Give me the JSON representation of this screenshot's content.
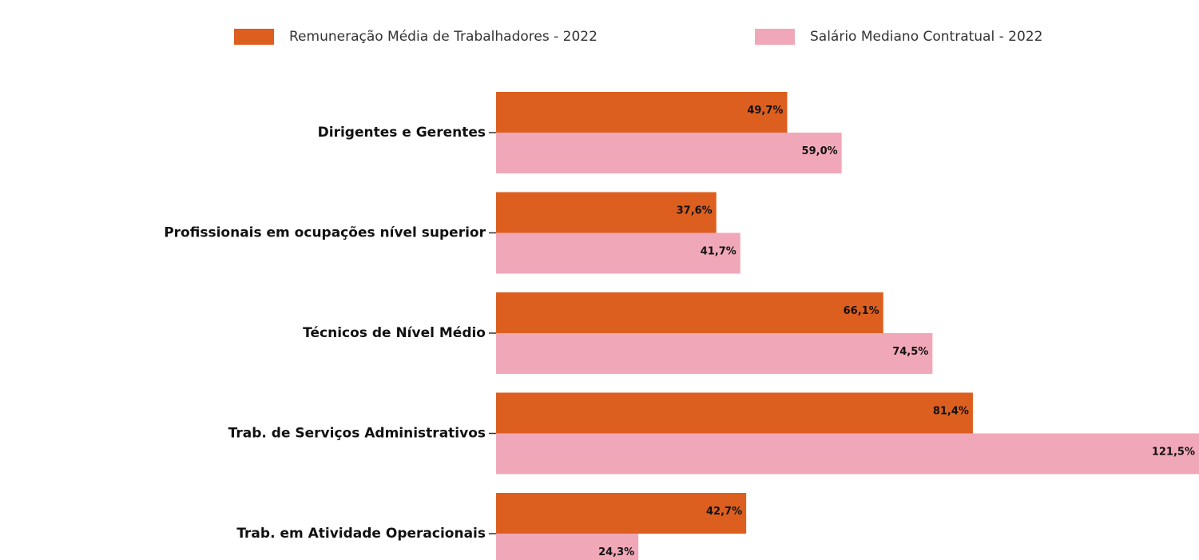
{
  "chart_data": {
    "type": "barh",
    "categories": [
      "Dirigentes e Gerentes",
      "Profissionais em ocupações nível superior",
      "Técnicos de Nível Médio",
      "Trab. de Serviços Administrativos",
      "Trab. em Atividade Operacionais"
    ],
    "series": [
      {
        "name": "Remuneração Média de Trabalhadores - 2022",
        "color": "#dc5f1f",
        "values": [
          49.7,
          37.6,
          66.1,
          81.4,
          42.7
        ],
        "value_labels": [
          "49,7%",
          "37,6%",
          "66,1%",
          "81,4%",
          "42,7%"
        ]
      },
      {
        "name": "Salário Mediano Contratual - 2022",
        "color": "#f0a8b8",
        "values": [
          59.0,
          41.7,
          74.5,
          121.5,
          24.3
        ],
        "value_labels": [
          "59,0%",
          "41,7%",
          "74,5%",
          "121,5%",
          "24,3%"
        ]
      }
    ],
    "xlim": [
      0,
      120
    ],
    "legend": "top"
  }
}
